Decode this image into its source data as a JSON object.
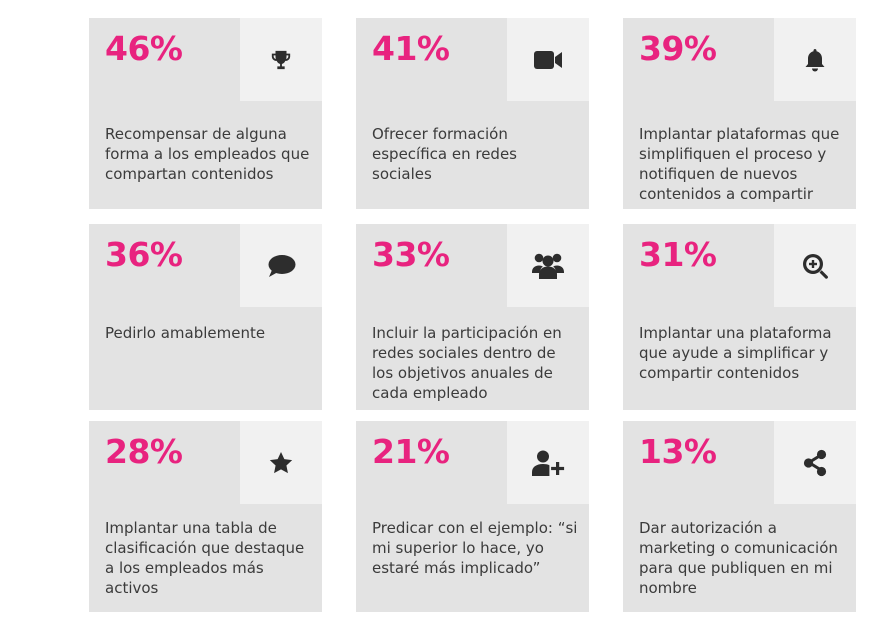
{
  "cards": [
    {
      "percent": "46%",
      "icon": "trophy-icon",
      "text": "Recompensar de alguna forma a los empleados que compartan contenidos"
    },
    {
      "percent": "41%",
      "icon": "video-camera-icon",
      "text": "Ofrecer formación específica en redes sociales"
    },
    {
      "percent": "39%",
      "icon": "bell-icon",
      "text": "Implantar plataformas que simplifiquen el proceso y notifiquen de nuevos contenidos a compartir"
    },
    {
      "percent": "36%",
      "icon": "speech-bubble-icon",
      "text": "Pedirlo amablemente"
    },
    {
      "percent": "33%",
      "icon": "group-users-icon",
      "text": "Incluir la participación en redes sociales dentro de los objetivos anuales de cada empleado"
    },
    {
      "percent": "31%",
      "icon": "zoom-in-icon",
      "text": "Implantar una plataforma que ayude a simplificar y compartir contenidos"
    },
    {
      "percent": "28%",
      "icon": "star-icon",
      "text": "Implantar una tabla de clasificación que destaque a los empleados más activos"
    },
    {
      "percent": "21%",
      "icon": "add-user-icon",
      "text": "Predicar con el ejemplo: “si mi superior lo hace, yo estaré más implicado”"
    },
    {
      "percent": "13%",
      "icon": "share-icon",
      "text": "Dar autorización a marketing o comunicación para que publiquen en mi nombre"
    }
  ],
  "colors": {
    "accent": "#e8237f",
    "card_bg": "#e3e3e3",
    "icon_box_bg": "#f1f1f1",
    "text": "#3b3b3b",
    "icon": "#2d2d2d"
  }
}
